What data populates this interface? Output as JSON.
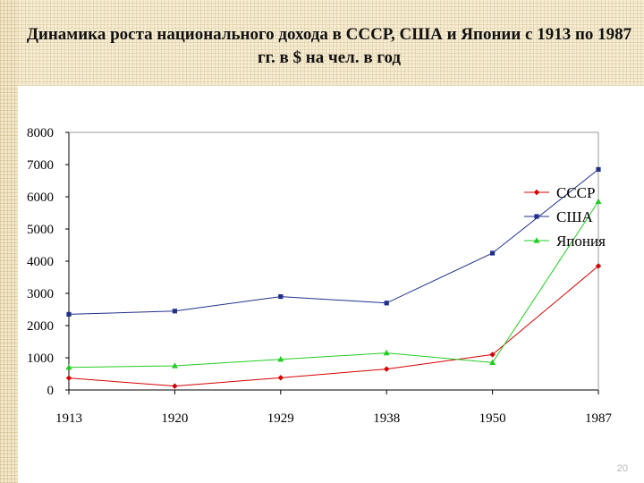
{
  "slide": {
    "title": "Динамика роста национального дохода в СССР, США и Японии с 1913 по 1987 гг. в $ на чел. в год",
    "page_number": "20"
  },
  "colors": {
    "ussr": "#d40000",
    "usa": "#1f2f8a",
    "japan": "#22cc22",
    "plot_border": "#000000"
  },
  "chart_data": {
    "type": "line",
    "title": "Динамика роста национального дохода в СССР, США и Японии с 1913 по 1987 гг. в $ на чел. в год",
    "categories": [
      "1913",
      "1920",
      "1929",
      "1938",
      "1950",
      "1987"
    ],
    "ylim": [
      0,
      8000
    ],
    "yticks": [
      0,
      1000,
      2000,
      3000,
      4000,
      5000,
      6000,
      7000,
      8000
    ],
    "grid": false,
    "legend_position": "right",
    "series": [
      {
        "name": "СССР",
        "color": "#d40000",
        "marker": "diamond",
        "values": [
          370,
          120,
          380,
          650,
          1100,
          3850
        ]
      },
      {
        "name": "США",
        "color": "#1f2f8a",
        "marker": "square",
        "values": [
          2350,
          2450,
          2900,
          2700,
          4250,
          6850
        ]
      },
      {
        "name": "Япония",
        "color": "#22cc22",
        "marker": "triangle",
        "values": [
          700,
          750,
          950,
          1150,
          850,
          5850
        ]
      }
    ]
  }
}
